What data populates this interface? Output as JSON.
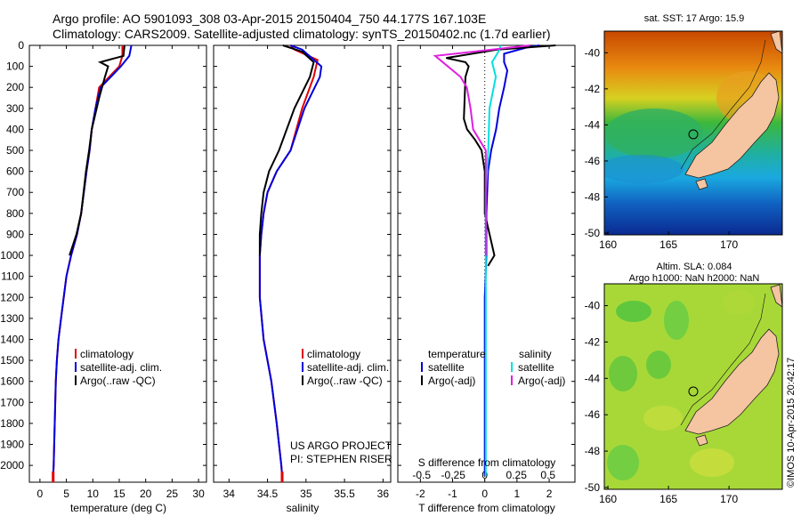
{
  "header": {
    "line1": "Argo profile: AO 5901093_308 03-Apr-2015 20150404_750 44.177S 167.103E",
    "line2": "Climatology: CARS2009. Satellite-adjusted climatology: synTS_20150402.nc (1.7d earlier)"
  },
  "colors": {
    "climatology": "#e00000",
    "satellite": "#0000dd",
    "argo": "#000000",
    "sal_satellite": "#00e0e0",
    "sal_argo": "#e020e0",
    "land": "#f5c4a0"
  },
  "credit": "©IMOS 10-Apr-2015 20:42:17",
  "project": {
    "line1": "US ARGO PROJECT",
    "line2": "PI: STEPHEN RISER"
  },
  "legend_tempsal": [
    "climatology",
    "satellite-adj. clim.",
    "Argo(..raw -QC)"
  ],
  "legend_diff": {
    "temp_head": "temperature",
    "sal_head": "salinity",
    "temp_items": [
      "satellite",
      "Argo(-adj)"
    ],
    "sal_items": [
      "satellite",
      "Argo(-adj)"
    ]
  },
  "depth_ticks": [
    "0",
    "100",
    "200",
    "300",
    "400",
    "500",
    "600",
    "700",
    "800",
    "900",
    "1000",
    "1100",
    "1200",
    "1300",
    "1400",
    "1500",
    "1600",
    "1700",
    "1800",
    "1900",
    "2000"
  ],
  "chart_data": [
    {
      "type": "line",
      "xlabel": "temperature (deg C)",
      "xticks": [
        "0",
        "5",
        "10",
        "15",
        "20",
        "25",
        "30"
      ],
      "xlim": [
        -2,
        31.5
      ],
      "ylim": [
        2080,
        0
      ],
      "series": [
        {
          "name": "climatology",
          "x": [
            15.6,
            15.6,
            15.0,
            11.2,
            10.5,
            9.8,
            9.4,
            8.8,
            8.3,
            7.8,
            7.0,
            5.9,
            5.0,
            4.5,
            4.0,
            3.5,
            3.2,
            3.0,
            2.8,
            2.6,
            2.5
          ],
          "y": [
            0,
            50,
            100,
            200,
            300,
            400,
            500,
            600,
            700,
            800,
            900,
            1000,
            1100,
            1200,
            1300,
            1400,
            1500,
            1600,
            1800,
            2000,
            2050
          ]
        },
        {
          "name": "satellite-adj. clim.",
          "x": [
            17.3,
            16.9,
            15.3,
            11.5,
            10.5,
            9.8,
            9.4,
            8.8,
            8.3,
            7.8,
            7.0,
            5.9,
            5.0,
            4.5,
            4.0,
            3.5,
            3.2,
            3.0,
            2.8,
            2.6,
            2.5
          ],
          "y": [
            0,
            50,
            100,
            200,
            300,
            400,
            500,
            600,
            700,
            800,
            900,
            1000,
            1100,
            1200,
            1300,
            1400,
            1500,
            1600,
            1800,
            2000,
            2050
          ]
        },
        {
          "name": "Argo(..raw -QC)",
          "x": [
            16.0,
            15.8,
            11.4,
            12.9,
            12.3,
            11.2,
            9.8,
            9.3,
            8.7,
            7.8,
            6.9,
            5.6
          ],
          "y": [
            0,
            50,
            80,
            100,
            150,
            250,
            400,
            500,
            600,
            800,
            900,
            1000
          ]
        }
      ]
    },
    {
      "type": "line",
      "xlabel": "salinity",
      "xticks": [
        "34",
        "34.5",
        "35",
        "35.5",
        "36"
      ],
      "xlim": [
        33.8,
        36.1
      ],
      "ylim": [
        2080,
        0
      ],
      "series": [
        {
          "name": "climatology",
          "x": [
            34.8,
            34.85,
            35.15,
            35.1,
            34.95,
            34.8,
            34.62,
            34.5,
            34.45,
            34.42,
            34.4,
            34.4,
            34.45,
            34.55,
            34.62,
            34.68,
            34.69
          ],
          "y": [
            0,
            20,
            70,
            150,
            300,
            500,
            600,
            700,
            800,
            900,
            1000,
            1200,
            1400,
            1600,
            1800,
            2000,
            2050
          ]
        },
        {
          "name": "satellite-adj. clim.",
          "x": [
            34.8,
            34.95,
            35.2,
            35.18,
            34.98,
            34.8,
            34.62,
            34.5,
            34.45,
            34.42,
            34.4,
            34.4,
            34.45,
            34.55,
            34.62,
            34.68,
            34.69
          ],
          "y": [
            0,
            20,
            100,
            150,
            300,
            500,
            600,
            700,
            800,
            900,
            1000,
            1200,
            1400,
            1600,
            1800,
            2000,
            2050
          ]
        },
        {
          "name": "Argo(..raw -QC)",
          "x": [
            34.7,
            34.95,
            35.1,
            35.05,
            34.85,
            34.65,
            34.52,
            34.45,
            34.42,
            34.4,
            34.4
          ],
          "y": [
            0,
            30,
            80,
            150,
            300,
            500,
            600,
            700,
            800,
            900,
            1000
          ]
        }
      ]
    },
    {
      "type": "line",
      "xlabel": "T difference from climatology",
      "xticks": [
        "-2",
        "-1",
        "0",
        "1",
        "2"
      ],
      "x2label": "S difference from climatology",
      "x2ticks": [
        "-0.5",
        "-0.25",
        "0",
        "0.25",
        "0.5"
      ],
      "xlim": [
        -2.7,
        2.8
      ],
      "ylim": [
        2080,
        0
      ],
      "series": [
        {
          "name": "temperature satellite",
          "x": [
            1.7,
            1.3,
            0.6,
            0.6,
            0.7,
            0.6,
            0.45,
            0.35,
            0.2,
            0.1,
            0.05,
            0.05,
            0.0,
            0.0,
            0.0
          ],
          "y": [
            0,
            10,
            40,
            80,
            120,
            200,
            300,
            400,
            500,
            600,
            800,
            1000,
            1200,
            1600,
            2050
          ]
        },
        {
          "name": "temperature Argo(-adj)",
          "x": [
            2.2,
            0.4,
            -1.2,
            -0.6,
            -0.5,
            -0.6,
            -0.65,
            -0.55,
            -0.3,
            -0.1,
            0.0,
            0.0,
            0.15,
            0.3,
            0.1
          ],
          "y": [
            0,
            20,
            60,
            80,
            100,
            150,
            350,
            400,
            450,
            500,
            600,
            800,
            900,
            1000,
            1050
          ]
        },
        {
          "name": "salinity satellite",
          "x": [
            0.12,
            0.1,
            0.05,
            0.08,
            0.03,
            0.02,
            0.0,
            0.0,
            0.0,
            0.0
          ],
          "y": [
            0,
            30,
            80,
            150,
            300,
            500,
            700,
            1000,
            1500,
            2050
          ]
        },
        {
          "name": "salinity Argo(-adj)",
          "x": [
            0.35,
            -0.4,
            -0.2,
            -0.15,
            -0.12,
            -0.1,
            -0.05,
            0.0,
            0.0,
            0.0
          ],
          "y": [
            0,
            50,
            150,
            200,
            300,
            400,
            450,
            500,
            700,
            1000
          ]
        }
      ]
    }
  ],
  "maps": [
    {
      "title_lines": [
        "sat. SST: 17 Argo: 15.9"
      ],
      "lon_ticks": [
        "160",
        "165",
        "170"
      ],
      "lat_ticks": [
        "-40",
        "-42",
        "-44",
        "-46",
        "-48",
        "-50"
      ],
      "lon_range": [
        159.7,
        174.4
      ],
      "lat_range": [
        -50.1,
        -38.8
      ],
      "argo_lon": 167.103,
      "argo_lat": -44.177
    },
    {
      "title_lines": [
        "Altim. SLA: 0.084",
        "Argo h1000: NaN h2000: NaN"
      ],
      "lon_ticks": [
        "160",
        "165",
        "170"
      ],
      "lat_ticks": [
        "-40",
        "-42",
        "-44",
        "-46",
        "-48",
        "-50"
      ],
      "lon_range": [
        159.7,
        174.4
      ],
      "lat_range": [
        -50.1,
        -38.8
      ],
      "argo_lon": 167.103,
      "argo_lat": -44.177
    }
  ]
}
